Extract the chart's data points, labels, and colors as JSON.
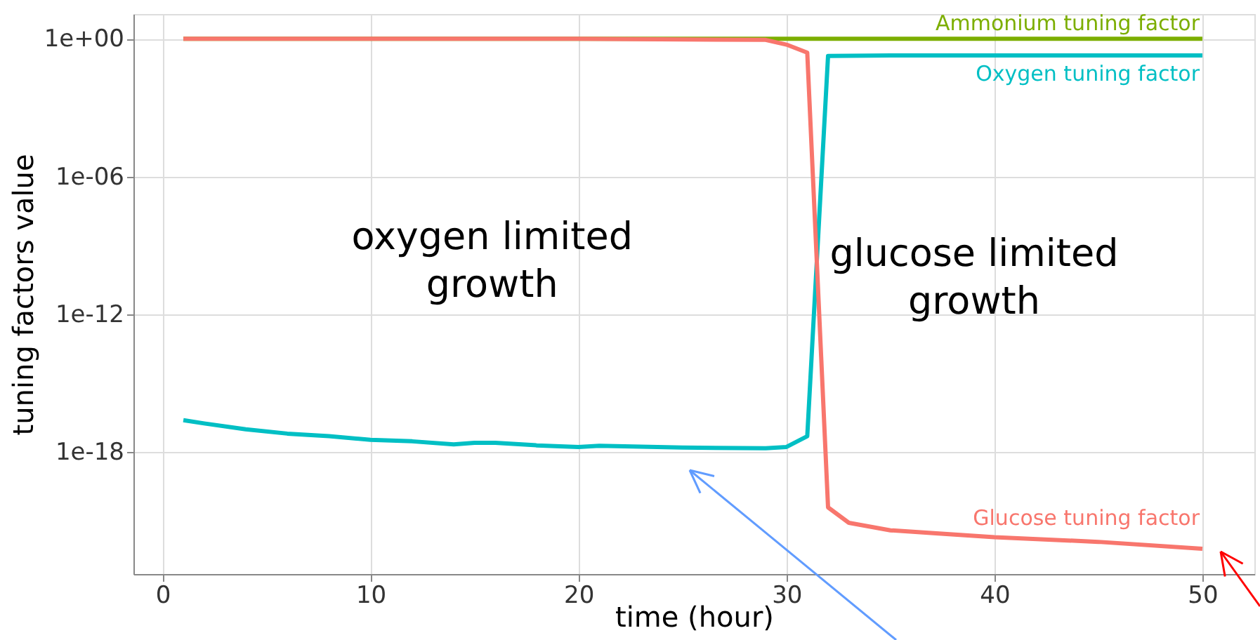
{
  "chart_data": {
    "type": "line",
    "xlabel": "time (hour)",
    "ylabel": "tuning factors value",
    "log": "y",
    "grid": true,
    "marker": "none",
    "line_style": "solid",
    "xlim": [
      -1.4,
      52.5
    ],
    "xticks": [
      0,
      10,
      20,
      30,
      40,
      50
    ],
    "ylim": [
      5e-24,
      12
    ],
    "yticks": [
      {
        "value": 1,
        "label": "1e+00"
      },
      {
        "value": 1e-06,
        "label": "1e-06"
      },
      {
        "value": 1e-12,
        "label": "1e-12"
      },
      {
        "value": 1e-18,
        "label": "1e-18"
      }
    ],
    "series": [
      {
        "name": "Ammonium tuning factor",
        "color": "#7cae00",
        "x": [
          1,
          50
        ],
        "values": [
          1,
          1
        ]
      },
      {
        "name": "Oxygen tuning factor",
        "color": "#00bfc4",
        "x": [
          1,
          2,
          4,
          6,
          8,
          10,
          12,
          14,
          15,
          16,
          18,
          20,
          21,
          25,
          29,
          30,
          31,
          32,
          35,
          40,
          50
        ],
        "values": [
          2.5e-17,
          1.8e-17,
          1e-17,
          6.5e-18,
          5e-18,
          3.5e-18,
          3e-18,
          2.2e-18,
          2.6e-18,
          2.6e-18,
          2e-18,
          1.7e-18,
          1.9e-18,
          1.6e-18,
          1.5e-18,
          1.7e-18,
          5e-18,
          0.18,
          0.19,
          0.19,
          0.19
        ]
      },
      {
        "name": "Glucose tuning factor",
        "color": "#f8766d",
        "x": [
          1,
          10,
          20,
          29,
          30,
          31,
          32,
          33,
          35,
          40,
          45,
          50
        ],
        "values": [
          1,
          1,
          1,
          0.9,
          0.56,
          0.25,
          4e-21,
          8.5e-22,
          4e-22,
          2e-22,
          1.26e-22,
          6.3e-23
        ]
      }
    ],
    "annotations": [
      "oxygen limited\ngrowth",
      "glucose limited\ngrowth"
    ]
  }
}
